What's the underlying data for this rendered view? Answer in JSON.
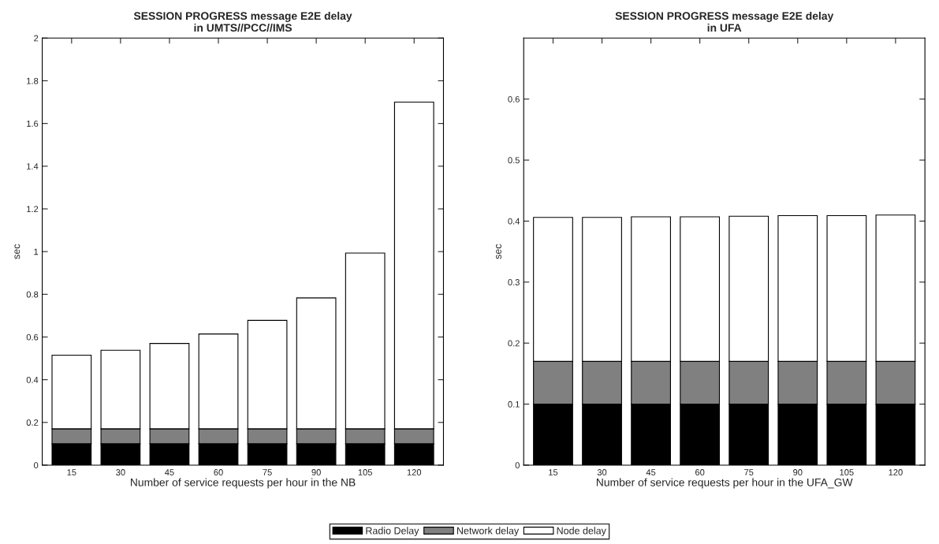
{
  "chart_data": [
    {
      "type": "bar",
      "title": "SESSION PROGRESS message E2E delay\nin UMTS//PCC//IMS",
      "xlabel": "Number of service requests per hour in the NB",
      "ylabel": "sec",
      "categories": [
        "15",
        "30",
        "45",
        "60",
        "75",
        "90",
        "105",
        "120"
      ],
      "stacked": true,
      "ylim": [
        0,
        2
      ],
      "yticks": [
        0,
        0.2,
        0.4,
        0.6,
        0.8,
        1,
        1.2,
        1.4,
        1.6,
        1.8,
        2
      ],
      "grid": false,
      "series": [
        {
          "color": "#000000",
          "values": [
            0.1,
            0.1,
            0.1,
            0.1,
            0.1,
            0.1,
            0.1,
            0.1
          ]
        },
        {
          "color": "#808080",
          "values": [
            0.07,
            0.07,
            0.07,
            0.07,
            0.07,
            0.07,
            0.07,
            0.07
          ]
        },
        {
          "color": "#ffffff",
          "values": [
            0.345,
            0.368,
            0.4,
            0.444,
            0.508,
            0.613,
            0.823,
            1.53
          ]
        }
      ]
    },
    {
      "type": "bar",
      "title": "SESSION PROGRESS message E2E delay\nin UFA",
      "xlabel": "Number of service requests per hour in the UFA_GW",
      "ylabel": "sec",
      "categories": [
        "15",
        "30",
        "45",
        "60",
        "75",
        "90",
        "105",
        "120"
      ],
      "stacked": true,
      "ylim": [
        0,
        0.7
      ],
      "yticks": [
        0,
        0.1,
        0.2,
        0.3,
        0.4,
        0.5,
        0.6
      ],
      "grid": false,
      "legend": "bottom",
      "series": [
        {
          "name": "Radio Delay",
          "color": "#000000",
          "values": [
            0.1,
            0.1,
            0.1,
            0.1,
            0.1,
            0.1,
            0.1,
            0.1
          ]
        },
        {
          "name": "Network delay",
          "color": "#808080",
          "values": [
            0.07,
            0.07,
            0.07,
            0.07,
            0.07,
            0.07,
            0.07,
            0.07
          ]
        },
        {
          "name": "Node delay",
          "color": "#ffffff",
          "values": [
            0.236,
            0.236,
            0.237,
            0.237,
            0.238,
            0.239,
            0.239,
            0.24
          ]
        }
      ]
    }
  ]
}
